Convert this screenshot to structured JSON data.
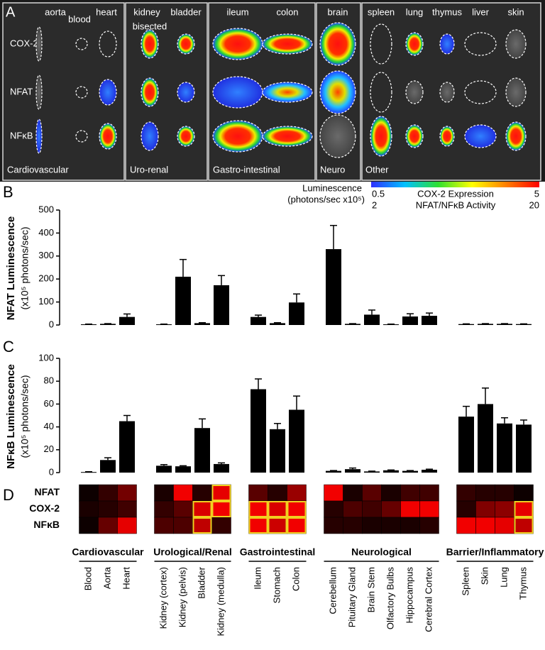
{
  "panels": {
    "a": "A",
    "b": "B",
    "c": "C",
    "d": "D"
  },
  "imaging": {
    "organs": [
      "aorta",
      "blood",
      "heart",
      "kidney",
      "bladder",
      "ileum",
      "colon",
      "brain",
      "spleen",
      "lung",
      "thymus",
      "liver",
      "skin"
    ],
    "kidney_note": "bisected",
    "rows": [
      "COX-2",
      "NFAT",
      "NFκB"
    ],
    "systems": [
      "Cardiovascular",
      "Uro-renal",
      "Gastro-intestinal",
      "Neuro",
      "Other"
    ],
    "colorbar": {
      "title": "Luminescence",
      "unit": "(photons/sec x10⁵)",
      "scales": [
        {
          "label": "COX-2 Expression",
          "min": 0.5,
          "max": 5
        },
        {
          "label": "NFAT/NFκB Activity",
          "min": 2,
          "max": 20
        }
      ],
      "colors": [
        "#3030ff",
        "#00c0ff",
        "#30e030",
        "#ffff00",
        "#ff8000",
        "#ff0000"
      ]
    }
  },
  "chart_data": [
    {
      "type": "bar",
      "ylabel": "NFAT Luminescence",
      "ylabel_unit": "(x10⁵ photons/sec)",
      "color": "#000000",
      "values": [
        3,
        5,
        35,
        null,
        3,
        210,
        8,
        173,
        null,
        35,
        8,
        98,
        null,
        330,
        5,
        45,
        3,
        37,
        40,
        null,
        4,
        5,
        5,
        4
      ],
      "errors": [
        1,
        1,
        13,
        null,
        1,
        75,
        2,
        42,
        null,
        8,
        2,
        37,
        null,
        103,
        1,
        20,
        1,
        12,
        12,
        null,
        1,
        1,
        1,
        1
      ],
      "ylim": [
        0,
        500
      ],
      "yticks": [
        0,
        100,
        200,
        300,
        400,
        500
      ]
    },
    {
      "type": "bar",
      "ylabel": "NFκB Luminescence",
      "ylabel_unit": "(x10⁵ photons/sec)",
      "color": "#000000",
      "values": [
        0.5,
        11,
        45,
        null,
        6,
        5.5,
        39,
        7.5,
        null,
        73,
        38,
        55,
        null,
        1.5,
        3,
        1,
        2,
        1.5,
        2.5,
        null,
        49,
        60,
        43,
        42
      ],
      "errors": [
        0.3,
        2,
        5,
        null,
        1,
        0.5,
        8,
        1,
        null,
        9,
        5,
        12,
        null,
        0.3,
        1,
        0.3,
        0.3,
        0.3,
        0.5,
        null,
        9,
        14,
        5,
        4
      ],
      "ylim": [
        0,
        100
      ],
      "yticks": [
        0,
        20,
        40,
        60,
        80,
        100
      ]
    },
    {
      "type": "heatmap",
      "rows": [
        "NFAT",
        "COX-2",
        "NFκB"
      ],
      "categories": [
        "Blood",
        "Aorta",
        "Heart",
        null,
        "Kidney (cortex)",
        "Kidney (pelvis)",
        "Bladder",
        "Kidney (medulla)",
        null,
        "Ileum",
        "Stomach",
        "Colon",
        null,
        "Cerebellum",
        "Pituitary Gland",
        "Brain Stem",
        "Olfactory Bulbs",
        "Hippocampus",
        "Cerebral Cortex",
        null,
        "Spleen",
        "Skin",
        "Lung",
        "Thymus"
      ],
      "groups": [
        "Cardiovascular",
        "Urological/Renal",
        "Gastrointestinal",
        "Neurological",
        "Barrier/Inflammatory"
      ],
      "values": [
        [
          0.05,
          0.2,
          0.45,
          null,
          0.1,
          0.95,
          0.15,
          0.9,
          null,
          0.35,
          0.15,
          0.6,
          null,
          0.95,
          0.1,
          0.35,
          0.1,
          0.25,
          0.25,
          null,
          0.2,
          0.15,
          0.15,
          0.05
        ],
        [
          0.1,
          0.15,
          0.25,
          null,
          0.2,
          0.35,
          0.85,
          0.95,
          null,
          0.95,
          0.85,
          0.95,
          null,
          0.15,
          0.3,
          0.25,
          0.4,
          0.95,
          0.95,
          null,
          0.15,
          0.5,
          0.55,
          0.9
        ],
        [
          0.05,
          0.4,
          0.9,
          null,
          0.3,
          0.3,
          0.75,
          0.2,
          null,
          0.95,
          0.8,
          0.95,
          null,
          0.15,
          0.15,
          0.1,
          0.1,
          0.1,
          0.15,
          null,
          0.95,
          0.95,
          0.9,
          0.75
        ]
      ],
      "outlined": [
        [
          false,
          false,
          false,
          false,
          false,
          false,
          false,
          true,
          false,
          false,
          false,
          false,
          false,
          false,
          false,
          false,
          false,
          false,
          false,
          false,
          false,
          false,
          false,
          false
        ],
        [
          false,
          false,
          false,
          false,
          false,
          false,
          true,
          true,
          false,
          true,
          true,
          true,
          false,
          false,
          false,
          false,
          false,
          false,
          false,
          false,
          false,
          false,
          false,
          true
        ],
        [
          false,
          false,
          false,
          false,
          false,
          false,
          true,
          false,
          false,
          true,
          true,
          true,
          false,
          false,
          false,
          false,
          false,
          false,
          false,
          false,
          false,
          false,
          false,
          true
        ]
      ],
      "outline_color": "#f0d020",
      "colormap": [
        "#000000",
        "#ff0000"
      ],
      "zlim": [
        0,
        1
      ]
    }
  ]
}
